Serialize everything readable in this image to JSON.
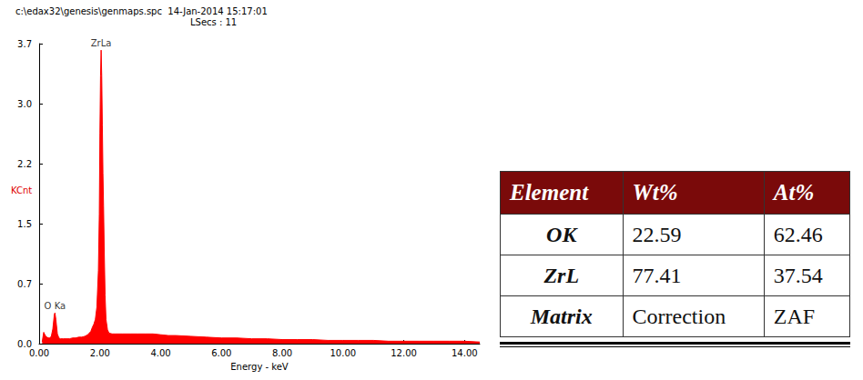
{
  "chart_data": {
    "type": "area",
    "title": "c:\\edax32\\genesis\\genmaps.spc  14-Jan-2014 15:17:01",
    "subtitle": "LSecs : 11",
    "xlabel": "Energy - keV",
    "ylabel": "KCnt",
    "color": "#ff0000",
    "grid": false,
    "x": [
      0.1,
      0.15,
      0.2,
      0.25,
      0.3,
      0.35,
      0.4,
      0.45,
      0.5,
      0.52,
      0.55,
      0.6,
      0.65,
      0.7,
      0.8,
      0.9,
      1.0,
      1.1,
      1.2,
      1.3,
      1.4,
      1.5,
      1.6,
      1.7,
      1.75,
      1.8,
      1.85,
      1.9,
      1.95,
      1.98,
      2.0,
      2.02,
      2.04,
      2.06,
      2.08,
      2.1,
      2.12,
      2.14,
      2.17,
      2.2,
      2.25,
      2.3,
      2.4,
      2.5,
      2.75,
      3.0,
      3.25,
      3.5,
      3.75,
      4.0,
      4.25,
      4.5,
      5.0,
      5.5,
      6.0,
      6.5,
      7.0,
      7.5,
      8.0,
      8.5,
      9.0,
      9.5,
      10.0,
      10.5,
      11.0,
      11.5,
      12.0,
      12.5,
      13.0,
      13.5,
      14.0,
      14.5
    ],
    "values": [
      0.02,
      0.14,
      0.1,
      0.08,
      0.07,
      0.07,
      0.09,
      0.18,
      0.36,
      0.38,
      0.3,
      0.12,
      0.07,
      0.06,
      0.06,
      0.06,
      0.06,
      0.07,
      0.07,
      0.08,
      0.08,
      0.09,
      0.11,
      0.15,
      0.2,
      0.24,
      0.3,
      0.45,
      0.9,
      1.6,
      2.6,
      3.3,
      3.62,
      3.3,
      2.7,
      2.1,
      1.7,
      1.2,
      0.6,
      0.3,
      0.17,
      0.13,
      0.12,
      0.12,
      0.12,
      0.12,
      0.12,
      0.12,
      0.12,
      0.11,
      0.1,
      0.1,
      0.09,
      0.08,
      0.07,
      0.07,
      0.06,
      0.06,
      0.05,
      0.05,
      0.05,
      0.04,
      0.04,
      0.04,
      0.04,
      0.03,
      0.03,
      0.03,
      0.03,
      0.03,
      0.03,
      0.02
    ],
    "xlim": [
      0,
      14.5
    ],
    "xticks": [
      {
        "value": 0,
        "label": "0.00"
      },
      {
        "value": 2,
        "label": "2.00"
      },
      {
        "value": 4,
        "label": "4.00"
      },
      {
        "value": 6,
        "label": "6.00"
      },
      {
        "value": 8,
        "label": "8.00"
      },
      {
        "value": 10,
        "label": "10.00"
      },
      {
        "value": 12,
        "label": "12.00"
      },
      {
        "value": 14,
        "label": "14.00"
      }
    ],
    "ylim": [
      0,
      3.7
    ],
    "yticks": [
      {
        "value": 0,
        "label": "0.0"
      },
      {
        "value": 0.74,
        "label": "0.7"
      },
      {
        "value": 1.48,
        "label": "1.5"
      },
      {
        "value": 2.22,
        "label": "2.2"
      },
      {
        "value": 2.96,
        "label": "3.0"
      },
      3.7
    ],
    "annotations": [
      {
        "text": "ZrLa",
        "x": 2.04,
        "y": 3.62
      },
      {
        "text": "O Ka",
        "x": 0.52,
        "y": 0.38
      }
    ]
  },
  "table": {
    "header": [
      "Element",
      "Wt%",
      "At%"
    ],
    "rows": [
      [
        "OK",
        22.59,
        62.46
      ],
      [
        "ZrL",
        77.41,
        37.54
      ],
      [
        "Matrix",
        "Correction",
        "ZAF"
      ]
    ]
  }
}
